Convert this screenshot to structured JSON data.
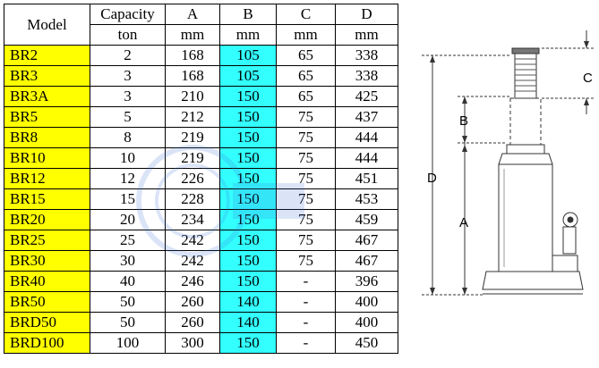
{
  "table": {
    "header_row1": [
      "Model",
      "Capacity",
      "A",
      "B",
      "C",
      "D"
    ],
    "header_row2": [
      "ton",
      "mm",
      "mm",
      "mm",
      "mm"
    ],
    "rows": [
      [
        "BR2",
        "2",
        "168",
        "105",
        "65",
        "338"
      ],
      [
        "BR3",
        "3",
        "168",
        "105",
        "65",
        "338"
      ],
      [
        "BR3A",
        "3",
        "210",
        "150",
        "65",
        "425"
      ],
      [
        "BR5",
        "5",
        "212",
        "150",
        "75",
        "437"
      ],
      [
        "BR8",
        "8",
        "219",
        "150",
        "75",
        "444"
      ],
      [
        "BR10",
        "10",
        "219",
        "150",
        "75",
        "444"
      ],
      [
        "BR12",
        "12",
        "226",
        "150",
        "75",
        "451"
      ],
      [
        "BR15",
        "15",
        "228",
        "150",
        "75",
        "453"
      ],
      [
        "BR20",
        "20",
        "234",
        "150",
        "75",
        "459"
      ],
      [
        "BR25",
        "25",
        "242",
        "150",
        "75",
        "467"
      ],
      [
        "BR30",
        "30",
        "242",
        "150",
        "75",
        "467"
      ],
      [
        "BR40",
        "40",
        "246",
        "150",
        "-",
        "396"
      ],
      [
        "BR50",
        "50",
        "260",
        "140",
        "-",
        "400"
      ],
      [
        "BRD50",
        "50",
        "260",
        "140",
        "-",
        "400"
      ],
      [
        "BRD100",
        "100",
        "300",
        "150",
        "-",
        "450"
      ]
    ],
    "colors": {
      "model_highlight": "#ffff00",
      "b_highlight": "#33ffff"
    }
  },
  "diagram": {
    "labels": {
      "a": "A",
      "b": "B",
      "c": "C",
      "d": "D"
    }
  }
}
